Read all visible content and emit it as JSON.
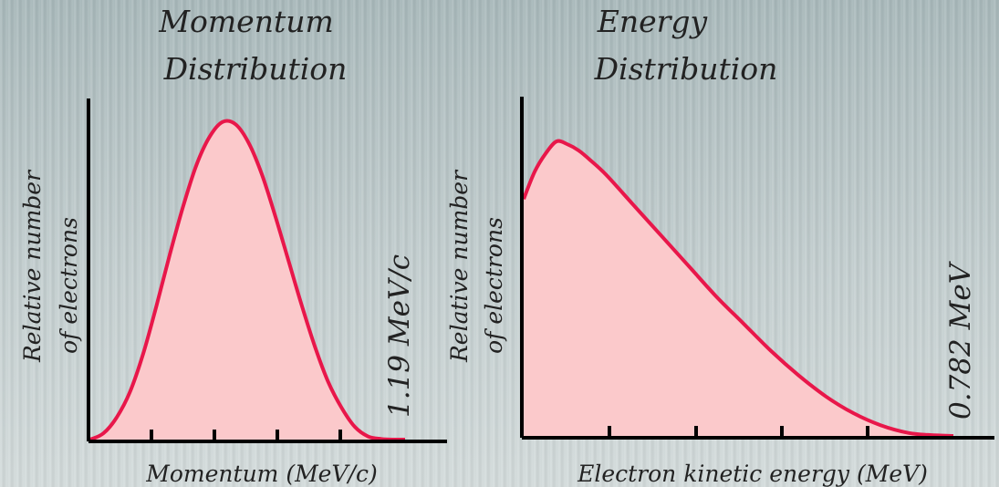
{
  "chart_data": [
    {
      "type": "area",
      "title_lines": [
        "Momentum",
        "Distribution"
      ],
      "xlabel": "Momentum (MeV/c)",
      "ylabel_lines": [
        "Relative number",
        "of electrons"
      ],
      "end_label": "1.19 MeV/c",
      "xlim": [
        0,
        1.19
      ],
      "ylim": [
        0,
        1.0
      ],
      "series": [
        {
          "x": [
            0,
            0.05,
            0.1,
            0.15,
            0.2,
            0.25,
            0.3,
            0.35,
            0.4,
            0.45,
            0.5,
            0.55,
            0.6,
            0.65,
            0.7,
            0.75,
            0.8,
            0.85,
            0.9,
            0.95,
            1.0,
            1.05,
            1.1,
            1.15,
            1.19
          ],
          "y": [
            0,
            0.02,
            0.07,
            0.15,
            0.27,
            0.42,
            0.58,
            0.73,
            0.86,
            0.95,
            0.998,
            0.99,
            0.93,
            0.83,
            0.7,
            0.56,
            0.42,
            0.29,
            0.18,
            0.1,
            0.04,
            0.01,
            0.002,
            0,
            0
          ]
        }
      ]
    },
    {
      "type": "area",
      "title_lines": [
        "Energy",
        "Distribution"
      ],
      "xlabel": "Electron kinetic energy (MeV)",
      "ylabel_lines": [
        "Relative number",
        "of electrons"
      ],
      "end_label": "0.782 MeV",
      "xlim": [
        0,
        0.782
      ],
      "ylim": [
        0,
        1.0
      ],
      "series": [
        {
          "x": [
            0,
            0.02,
            0.04,
            0.06,
            0.08,
            0.1,
            0.12,
            0.15,
            0.2,
            0.25,
            0.3,
            0.35,
            0.4,
            0.45,
            0.5,
            0.55,
            0.6,
            0.65,
            0.7,
            0.74,
            0.782
          ],
          "y": [
            0.78,
            0.87,
            0.93,
            0.97,
            0.96,
            0.94,
            0.91,
            0.86,
            0.76,
            0.66,
            0.56,
            0.46,
            0.37,
            0.28,
            0.2,
            0.13,
            0.075,
            0.035,
            0.01,
            0.003,
            0
          ]
        }
      ]
    }
  ],
  "colors": {
    "curve": "#e8174a",
    "fill": "#fbc9cb",
    "axis": "#000000"
  }
}
